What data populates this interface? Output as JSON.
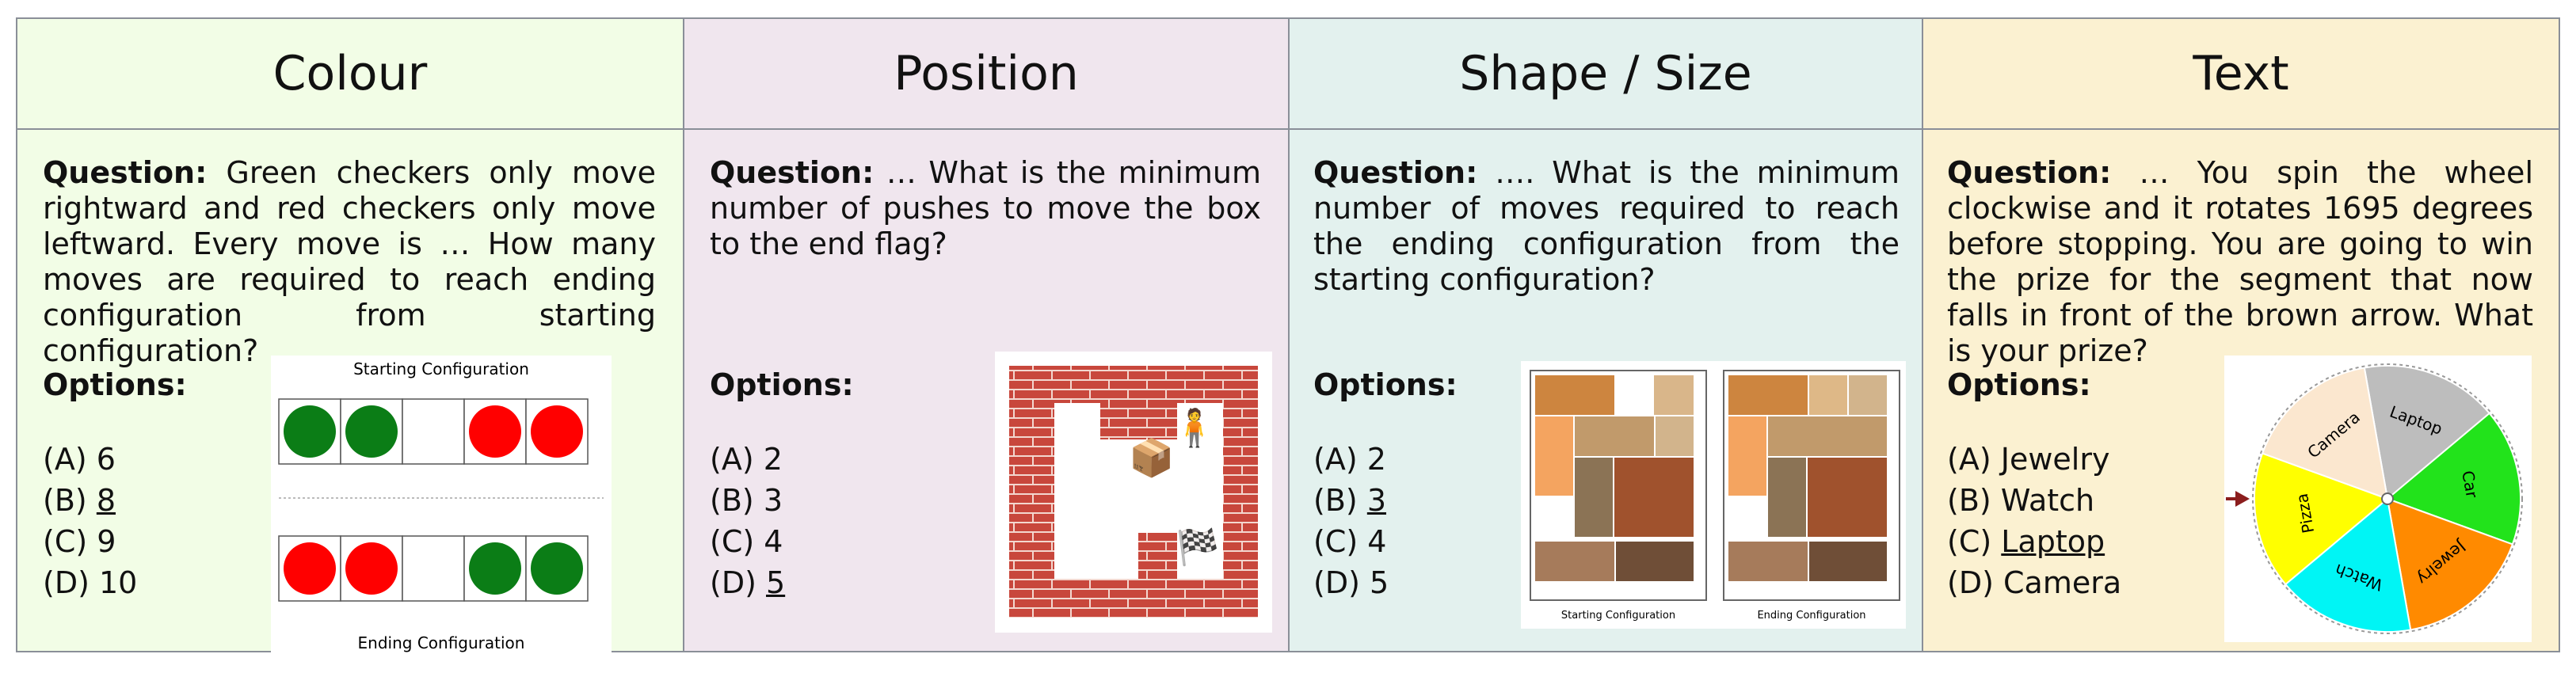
{
  "columns": [
    {
      "title": "Colour",
      "question_label": "Question:",
      "question": "Green checkers only move rightward and red checkers only move leftward. Every move is … How many moves are required to reach ending configuration from starting configuration?",
      "options_label": "Options:",
      "options": [
        {
          "prefix": "(A) ",
          "value": "6"
        },
        {
          "prefix": "(B) ",
          "value": "8"
        },
        {
          "prefix": "(C) ",
          "value": "9"
        },
        {
          "prefix": "(D) ",
          "value": "10"
        }
      ],
      "answer_index": 1,
      "figure": {
        "top_caption": "Starting Configuration",
        "bottom_caption": "Ending Configuration",
        "start": [
          "green",
          "green",
          "empty",
          "red",
          "red"
        ],
        "end": [
          "red",
          "red",
          "empty",
          "green",
          "green"
        ]
      }
    },
    {
      "title": "Position",
      "question_label": "Question:",
      "question": "… What is the minimum number of pushes to move the box to the end flag?",
      "options_label": "Options:",
      "options": [
        {
          "prefix": "(A) ",
          "value": "2"
        },
        {
          "prefix": "(B) ",
          "value": "3"
        },
        {
          "prefix": "(C) ",
          "value": "4"
        },
        {
          "prefix": "(D) ",
          "value": "5"
        }
      ],
      "answer_index": 3,
      "figure": {
        "player_glyph": "🧍",
        "box_glyph": "📦",
        "flag_glyph": "🏁"
      }
    },
    {
      "title": "Shape / Size",
      "question_label": "Question:",
      "question": "…. What is the minimum number of moves required to reach the ending configuration from the starting configuration?",
      "options_label": "Options:",
      "options": [
        {
          "prefix": "(A) ",
          "value": "2"
        },
        {
          "prefix": "(B) ",
          "value": "3"
        },
        {
          "prefix": "(C) ",
          "value": "4"
        },
        {
          "prefix": "(D) ",
          "value": "5"
        }
      ],
      "answer_index": 1,
      "figure": {
        "left_caption": "Starting Configuration",
        "right_caption": "Ending Configuration"
      }
    },
    {
      "title": "Text",
      "question_label": "Question:",
      "question": "… You spin the wheel clockwise and it rotates 1695 degrees before stopping. You are going to win the prize for the segment that now falls in front of the brown arrow. What is your prize?",
      "options_label": "Options:",
      "options": [
        {
          "prefix": "(A) ",
          "value": "Jewelry"
        },
        {
          "prefix": "(B) ",
          "value": "Watch"
        },
        {
          "prefix": "(C) ",
          "value": "Laptop"
        },
        {
          "prefix": "(D) ",
          "value": "Camera"
        }
      ],
      "answer_index": 2,
      "figure": {
        "segments": [
          {
            "label": "Laptop",
            "color": "#bdbdbd"
          },
          {
            "label": "Car",
            "color": "#22e31b"
          },
          {
            "label": "Jewelry",
            "color": "#ff8a00"
          },
          {
            "label": "Watch",
            "color": "#00f5f5"
          },
          {
            "label": "Pizza",
            "color": "#ffff00"
          },
          {
            "label": "Camera",
            "color": "#fbe7cf"
          }
        ],
        "arrow_color": "#8b1d1d"
      }
    }
  ],
  "colors": {
    "green": "#0b7d16",
    "red": "#ff0000",
    "border": "#8a8f98",
    "brick": "#c8473c"
  }
}
